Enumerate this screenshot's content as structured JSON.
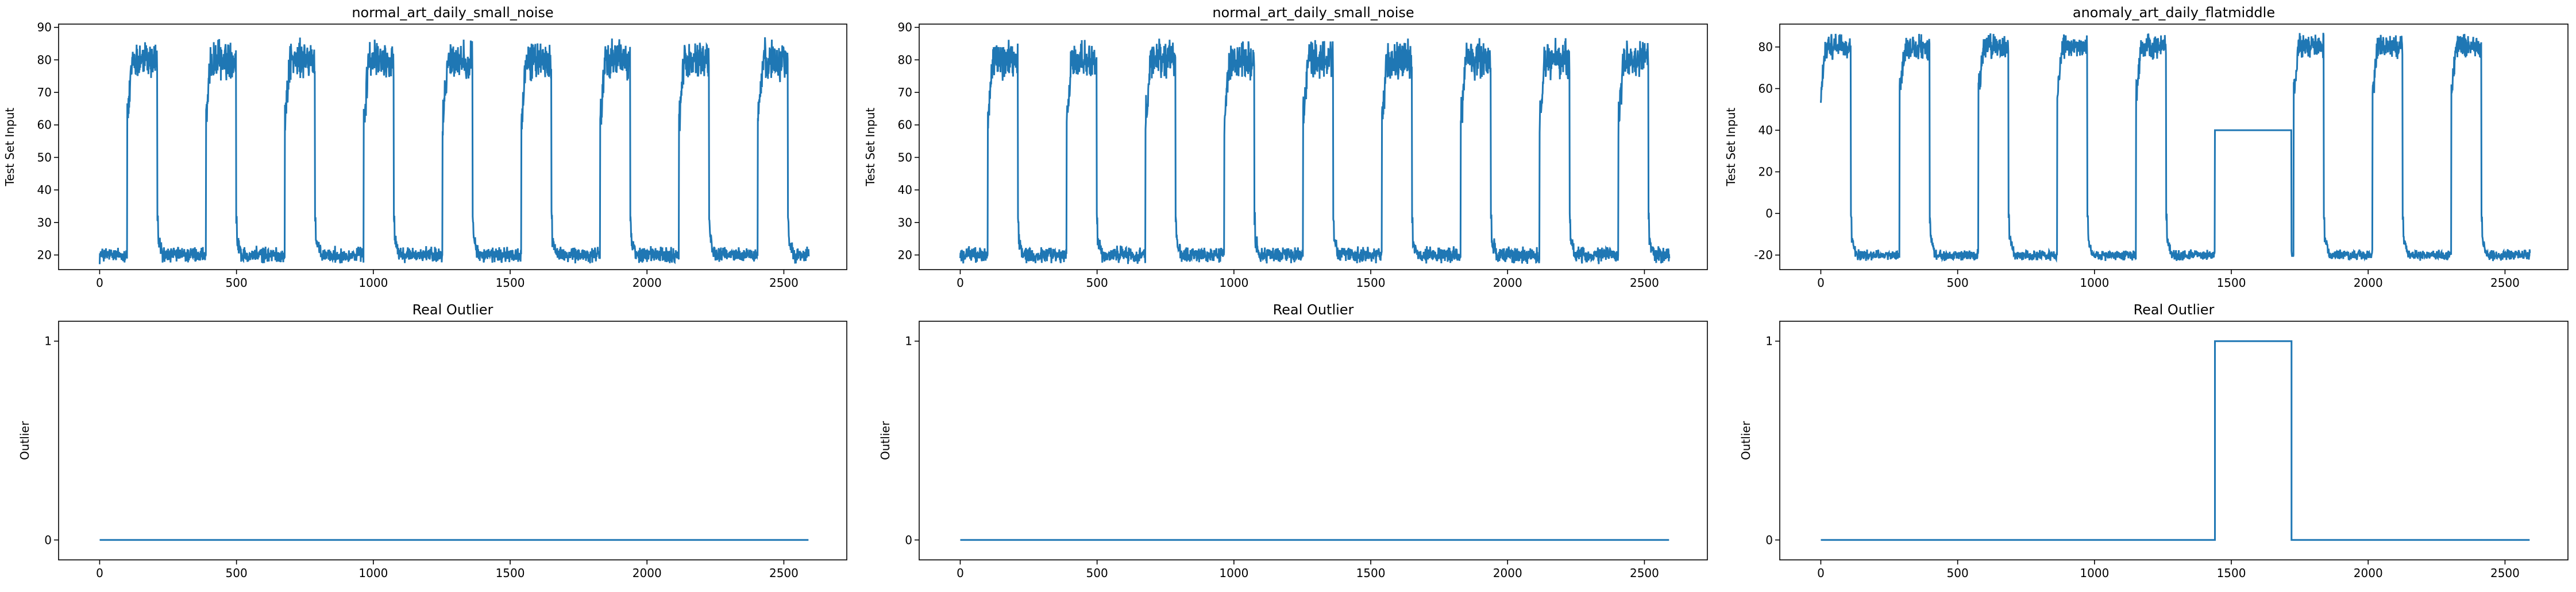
{
  "colors": {
    "series": "#1f77b4"
  },
  "chart_data": [
    {
      "type": "line",
      "panel": "top-left",
      "title": "normal_art_daily_small_noise",
      "xlabel": "",
      "ylabel": "Test Set Input",
      "xlim": [
        -150,
        2730
      ],
      "ylim": [
        15.5,
        91
      ],
      "xticks": [
        0,
        500,
        1000,
        1500,
        2000,
        2500
      ],
      "yticks": [
        20,
        30,
        40,
        50,
        60,
        70,
        80,
        90
      ],
      "grid": false,
      "legend": "none",
      "series": [
        {
          "pattern": "daily_cycle",
          "length": 2592,
          "period": 288,
          "low": 20,
          "high": 80,
          "noise_amplitude": 7,
          "first_high_start": 101,
          "ramp_to": 63
        }
      ]
    },
    {
      "type": "line",
      "panel": "top-middle",
      "title": "normal_art_daily_small_noise",
      "xlabel": "",
      "ylabel": "Test Set Input",
      "xlim": [
        -150,
        2730
      ],
      "ylim": [
        15.5,
        91
      ],
      "xticks": [
        0,
        500,
        1000,
        1500,
        2000,
        2500
      ],
      "yticks": [
        20,
        30,
        40,
        50,
        60,
        70,
        80,
        90
      ],
      "grid": false,
      "legend": "none",
      "series": [
        {
          "pattern": "daily_cycle",
          "length": 2592,
          "period": 288,
          "low": 20,
          "high": 80,
          "noise_amplitude": 7,
          "first_high_start": 101,
          "ramp_to": 63
        }
      ]
    },
    {
      "type": "line",
      "panel": "top-right",
      "title": "anomaly_art_daily_flatmiddle",
      "xlabel": "",
      "ylabel": "Test Set Input",
      "xlim": [
        -150,
        2730
      ],
      "ylim": [
        -27,
        91
      ],
      "xticks": [
        0,
        500,
        1000,
        1500,
        2000,
        2500
      ],
      "yticks": [
        -20,
        0,
        20,
        40,
        60,
        80
      ],
      "grid": false,
      "legend": "none",
      "series": [
        {
          "pattern": "daily_cycle_flat",
          "length": 2592,
          "period": 288,
          "low": -20,
          "high": 80,
          "noise_amplitude": 7,
          "first_high_start": 0,
          "ramp_to": 60,
          "flat_start": 1440,
          "flat_end": 1720,
          "flat_value": 40
        }
      ]
    },
    {
      "type": "line",
      "panel": "bottom-left",
      "title": "Real Outlier",
      "xlabel": "",
      "ylabel": "Outlier",
      "xlim": [
        -150,
        2730
      ],
      "ylim": [
        -0.1,
        1.1
      ],
      "xticks": [
        0,
        500,
        1000,
        1500,
        2000,
        2500
      ],
      "yticks": [
        0,
        1
      ],
      "grid": false,
      "legend": "none",
      "series": [
        {
          "pattern": "step",
          "x": [
            0,
            2590
          ],
          "y": [
            0,
            0
          ]
        }
      ]
    },
    {
      "type": "line",
      "panel": "bottom-middle",
      "title": "Real Outlier",
      "xlabel": "",
      "ylabel": "Outlier",
      "xlim": [
        -150,
        2730
      ],
      "ylim": [
        -0.1,
        1.1
      ],
      "xticks": [
        0,
        500,
        1000,
        1500,
        2000,
        2500
      ],
      "yticks": [
        0,
        1
      ],
      "grid": false,
      "legend": "none",
      "series": [
        {
          "pattern": "step",
          "x": [
            0,
            2590
          ],
          "y": [
            0,
            0
          ]
        }
      ]
    },
    {
      "type": "line",
      "panel": "bottom-right",
      "title": "Real Outlier",
      "xlabel": "",
      "ylabel": "Outlier",
      "xlim": [
        -150,
        2730
      ],
      "ylim": [
        -0.1,
        1.1
      ],
      "xticks": [
        0,
        500,
        1000,
        1500,
        2000,
        2500
      ],
      "yticks": [
        0,
        1
      ],
      "grid": false,
      "legend": "none",
      "series": [
        {
          "pattern": "step",
          "x": [
            0,
            1440,
            1440,
            1720,
            1720,
            2590
          ],
          "y": [
            0,
            0,
            1,
            1,
            0,
            0
          ]
        }
      ]
    }
  ]
}
